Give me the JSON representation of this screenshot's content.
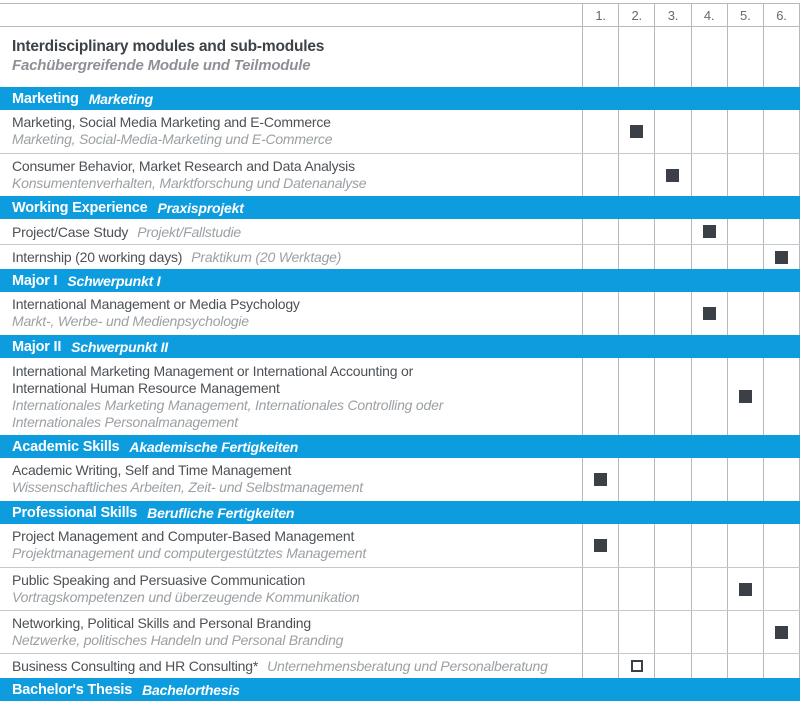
{
  "table": {
    "columns": [
      "1.",
      "2.",
      "3.",
      "4.",
      "5.",
      "6."
    ],
    "title": {
      "en": "Interdisciplinary modules and sub-modules",
      "de": "Fachübergreifende Module und Teilmodule"
    },
    "sections": [
      {
        "band": {
          "en": "Marketing",
          "de": "Marketing"
        },
        "rows": [
          {
            "layout": "stacked",
            "en": [
              "Marketing, Social Media Marketing and E-Commerce"
            ],
            "de": [
              "Marketing, Social-Media-Marketing und E-Commerce"
            ],
            "mark": {
              "col": 2,
              "style": "filled"
            }
          },
          {
            "layout": "stacked",
            "en": [
              "Consumer Behavior, Market Research and Data Analysis"
            ],
            "de": [
              "Konsumentenverhalten, Marktforschung und Datenanalyse"
            ],
            "mark": {
              "col": 3,
              "style": "filled"
            }
          }
        ]
      },
      {
        "band": {
          "en": "Working Experience",
          "de": "Praxisprojekt"
        },
        "rows": [
          {
            "layout": "inline",
            "en": [
              "Project/Case Study"
            ],
            "de": [
              "Projekt/Fallstudie"
            ],
            "mark": {
              "col": 4,
              "style": "filled"
            }
          },
          {
            "layout": "inline",
            "en": [
              "Internship (20 working days)"
            ],
            "de": [
              "Praktikum (20 Werktage)"
            ],
            "mark": {
              "col": 6,
              "style": "filled"
            }
          }
        ]
      },
      {
        "band": {
          "en": "Major I",
          "de": "Schwerpunkt I"
        },
        "rows": [
          {
            "layout": "stacked",
            "en": [
              "International Management or Media Psychology"
            ],
            "de": [
              "Markt-, Werbe- und Medienpsychologie"
            ],
            "mark": {
              "col": 4,
              "style": "filled"
            }
          }
        ]
      },
      {
        "band": {
          "en": "Major II",
          "de": "Schwerpunkt II"
        },
        "rows": [
          {
            "layout": "tall",
            "en": [
              "International Marketing Management or International Accounting or",
              "International Human Resource Management"
            ],
            "de": [
              "Internationales Marketing Management, Internationales Controlling oder",
              "Internationales Personalmanagement"
            ],
            "mark": {
              "col": 5,
              "style": "filled"
            }
          }
        ]
      },
      {
        "band": {
          "en": "Academic Skills",
          "de": "Akademische Fertigkeiten"
        },
        "rows": [
          {
            "layout": "stacked",
            "en": [
              "Academic Writing, Self and Time Management"
            ],
            "de": [
              "Wissenschaftliches Arbeiten, Zeit- und Selbstmanagement"
            ],
            "mark": {
              "col": 1,
              "style": "filled"
            }
          }
        ]
      },
      {
        "band": {
          "en": "Professional Skills",
          "de": "Berufliche Fertigkeiten"
        },
        "rows": [
          {
            "layout": "stacked",
            "en": [
              "Project Management and Computer-Based Management"
            ],
            "de": [
              "Projektmanagement und computergestütztes Management"
            ],
            "mark": {
              "col": 1,
              "style": "filled"
            }
          },
          {
            "layout": "stacked",
            "en": [
              "Public Speaking and Persuasive Communication"
            ],
            "de": [
              "Vortragskompetenzen und überzeugende Kommunikation"
            ],
            "mark": {
              "col": 5,
              "style": "filled"
            }
          },
          {
            "layout": "stacked",
            "en": [
              "Networking, Political Skills and Personal Branding"
            ],
            "de": [
              "Netzwerke, politisches Handeln und Personal Branding"
            ],
            "mark": {
              "col": 6,
              "style": "filled"
            }
          },
          {
            "layout": "inline",
            "en": [
              "Business Consulting and HR Consulting*"
            ],
            "de": [
              "Unternehmensberatung und Personalberatung"
            ],
            "mark": {
              "col": 2,
              "style": "outlined"
            }
          }
        ]
      },
      {
        "band": {
          "en": "Bachelor's Thesis",
          "de": "Bachelorthesis"
        },
        "rows": []
      }
    ],
    "colors": {
      "accent_blue": "#0d9ddf",
      "marker_dark": "#3a4045"
    }
  }
}
